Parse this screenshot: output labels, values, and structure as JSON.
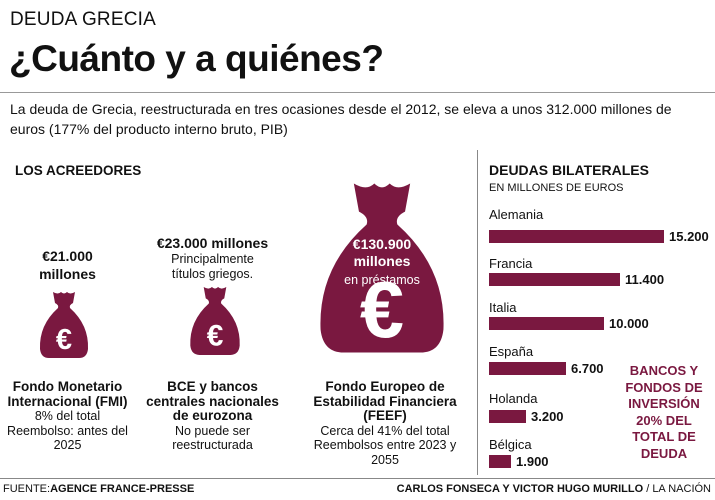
{
  "kicker": "DEUDA GRECIA",
  "title": "¿Cuánto y a quiénes?",
  "intro": "La deuda de Grecia,  reestructurada en tres ocasiones desde el 2012, se eleva a unos 312.000 millones de euros (177% del producto interno bruto, PIB)",
  "acreedores": {
    "heading": "LOS ACREEDORES",
    "items": [
      {
        "amount": "€21.000 millones",
        "note": "",
        "name": "Fondo Monetario Internacional (FMI)",
        "line1": "8% del total",
        "line2": "Reembolso: antes del 2025",
        "icon": "money-bag-euro-icon"
      },
      {
        "amount": "€23.000 millones",
        "note": "Principalmente títulos griegos.",
        "name": "BCE y bancos centrales nacionales de  eurozona",
        "line1": "No puede ser reestructurada",
        "line2": "",
        "icon": "money-bag-euro-icon"
      },
      {
        "amount": "€130.900 millones",
        "note": "en préstamos",
        "name": "Fondo Europeo de Estabilidad Financiera (FEEF)",
        "line1": "Cerca del 41% del total",
        "line2": "Reembolsos entre 2023 y 2055",
        "icon": "money-bag-euro-icon"
      }
    ]
  },
  "chart_data": {
    "type": "bar",
    "orientation": "horizontal",
    "title": "DEUDAS BILATERALES",
    "subtitle": "EN MILLONES DE EUROS",
    "categories": [
      "Alemania",
      "Francia",
      "Italia",
      "España",
      "Holanda",
      "Bélgica"
    ],
    "values": [
      15200,
      11400,
      10000,
      6700,
      3200,
      1900
    ],
    "value_labels": [
      "15.200",
      "11.400",
      "10.000",
      "6.700",
      "3.200",
      "1.900"
    ],
    "color": "#7a1840",
    "annotation": "BANCOS Y FONDOS DE INVERSIÓN 20% DEL TOTAL DE DEUDA"
  },
  "footer": {
    "source_prefix": "FUENTE:",
    "source": "AGENCE FRANCE-PRESSE",
    "authors": "CARLOS FONSECA Y VICTOR HUGO MURILLO",
    "outlet": "/ LA NACIÓN"
  }
}
